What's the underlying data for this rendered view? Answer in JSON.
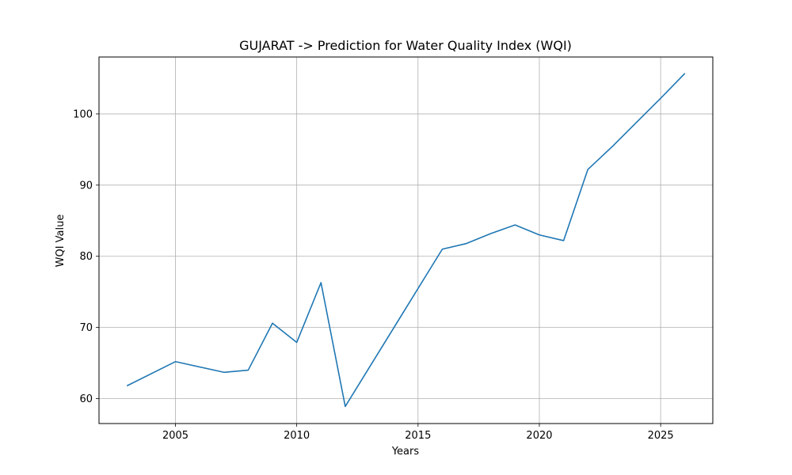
{
  "chart_data": {
    "type": "line",
    "title": "GUJARAT -> Prediction for Water Quality Index (WQI)",
    "xlabel": "Years",
    "ylabel": "WQI Value",
    "xlim": [
      2001.85,
      2027.15
    ],
    "ylim": [
      56.5,
      108.0
    ],
    "xticks": [
      2005,
      2010,
      2015,
      2020,
      2025
    ],
    "yticks": [
      60,
      70,
      80,
      90,
      100
    ],
    "grid": true,
    "line_color": "#1f77b4",
    "series": [
      {
        "x": [
          2003,
          2005,
          2007,
          2008,
          2009,
          2010,
          2011,
          2012,
          2016,
          2017,
          2018,
          2019,
          2020,
          2021,
          2022,
          2023,
          2024,
          2025,
          2026
        ],
        "values": [
          61.8,
          65.2,
          63.7,
          64.0,
          70.6,
          67.9,
          76.3,
          58.9,
          81.0,
          81.8,
          83.2,
          84.4,
          83.0,
          82.2,
          92.2,
          95.4,
          98.8,
          102.2,
          105.7
        ]
      }
    ]
  }
}
